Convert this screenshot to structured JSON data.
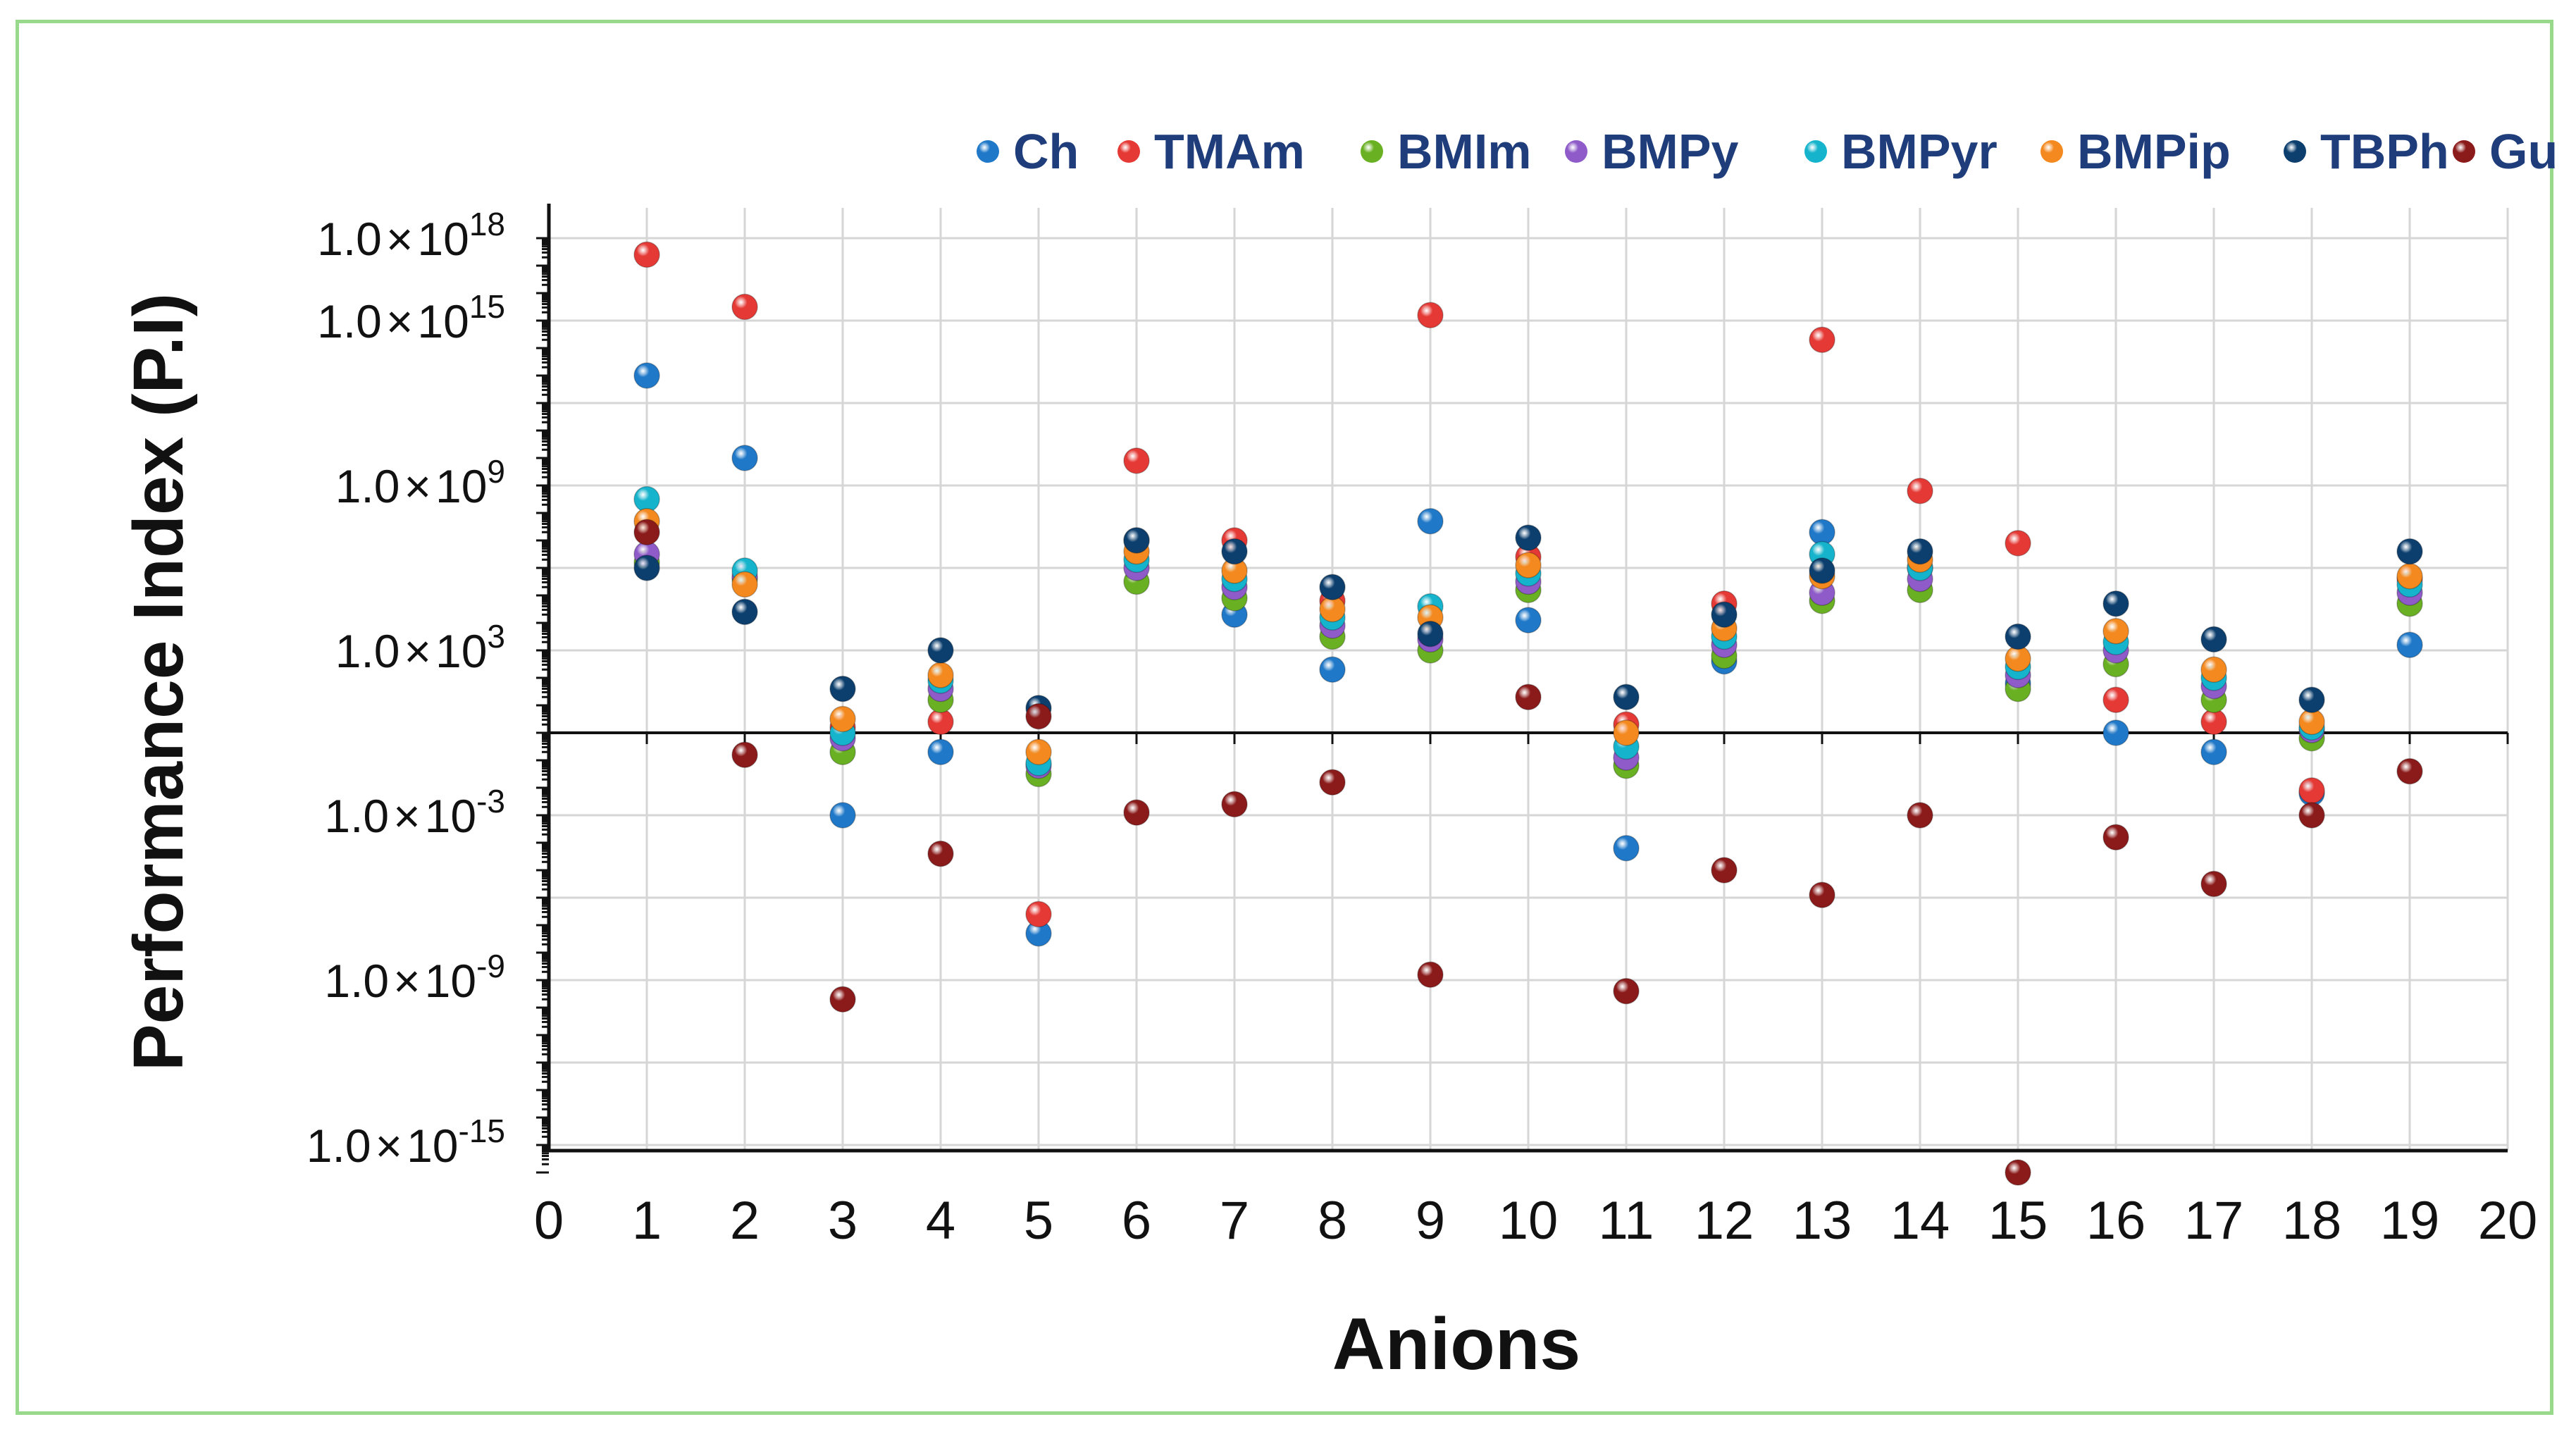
{
  "chart_data": {
    "type": "scatter",
    "title": "",
    "xlabel": "Anions",
    "ylabel": "Performance Index (P.I)",
    "y_scale": "log10",
    "xlim": [
      0,
      20
    ],
    "ylim_exponent": [
      -16,
      18.5
    ],
    "x_ticks": [
      "0",
      "1",
      "2",
      "3",
      "4",
      "5",
      "6",
      "7",
      "8",
      "9",
      "10",
      "11",
      "12",
      "13",
      "14",
      "15",
      "16",
      "17",
      "18",
      "19",
      "20"
    ],
    "y_ticks": [
      {
        "mantissa": "1.0",
        "times": "×",
        "base": "10",
        "exponent": "18"
      },
      {
        "mantissa": "1.0",
        "times": "×",
        "base": "10",
        "exponent": "15"
      },
      {
        "mantissa": "1.0",
        "times": "×",
        "base": "10",
        "exponent": "9"
      },
      {
        "mantissa": "1.0",
        "times": "×",
        "base": "10",
        "exponent": "3"
      },
      {
        "mantissa": "1.0",
        "times": "×",
        "base": "10",
        "exponent": "-3"
      },
      {
        "mantissa": "1.0",
        "times": "×",
        "base": "10",
        "exponent": "-9"
      },
      {
        "mantissa": "1.0",
        "times": "×",
        "base": "10",
        "exponent": "-15"
      }
    ],
    "grid": true,
    "legend_position": "top",
    "series": [
      {
        "name": "Ch",
        "color": "#1f78c8",
        "x": [
          1,
          2,
          3,
          4,
          5,
          6,
          7,
          8,
          9,
          10,
          11,
          12,
          13,
          14,
          15,
          16,
          17,
          18,
          19
        ],
        "log10_y": [
          13,
          10,
          -3,
          -0.7,
          -7.3,
          7,
          4.3,
          2.3,
          7.7,
          4.1,
          -4.2,
          2.6,
          7.3,
          6,
          1.8,
          0,
          -0.7,
          -2.2,
          3.2
        ]
      },
      {
        "name": "TMAm",
        "color": "#e53935",
        "x": [
          1,
          2,
          3,
          4,
          5,
          6,
          7,
          8,
          9,
          10,
          11,
          12,
          13,
          14,
          15,
          16,
          17,
          18,
          19
        ],
        "log10_y": [
          17.4,
          15.5,
          0.2,
          0.4,
          -6.6,
          9.9,
          7,
          4.8,
          15.2,
          6.4,
          0.3,
          4.7,
          14.3,
          8.8,
          6.9,
          1.2,
          0.4,
          -2.1,
          5.6
        ]
      },
      {
        "name": "BMIm",
        "color": "#6ab023",
        "x": [
          1,
          2,
          3,
          4,
          5,
          6,
          7,
          8,
          9,
          10,
          11,
          12,
          13,
          14,
          15,
          16,
          17,
          18,
          19
        ],
        "log10_y": [
          6.2,
          5.6,
          -0.7,
          1.2,
          -1.5,
          5.5,
          4.9,
          3.5,
          3,
          5.2,
          -1.2,
          2.8,
          4.8,
          5.2,
          1.6,
          2.5,
          1.2,
          -0.2,
          4.7
        ]
      },
      {
        "name": "BMPy",
        "color": "#8e5bc8",
        "x": [
          1,
          2,
          3,
          4,
          5,
          6,
          7,
          8,
          9,
          10,
          11,
          12,
          13,
          14,
          15,
          16,
          17,
          18,
          19
        ],
        "log10_y": [
          6.5,
          5.7,
          -0.2,
          1.6,
          -1.2,
          6,
          5.3,
          3.9,
          3.4,
          5.5,
          -0.9,
          3.2,
          5.1,
          5.6,
          2.1,
          3,
          1.7,
          0.1,
          5.1
        ]
      },
      {
        "name": "BMPyr",
        "color": "#16b4cc",
        "x": [
          1,
          2,
          3,
          4,
          5,
          6,
          7,
          8,
          9,
          10,
          11,
          12,
          13,
          14,
          15,
          16,
          17,
          18,
          19
        ],
        "log10_y": [
          8.5,
          5.9,
          0,
          1.9,
          -1.1,
          6.3,
          5.6,
          4.2,
          4.6,
          5.8,
          -0.5,
          3.5,
          6.5,
          6,
          2.4,
          3.3,
          2,
          0.2,
          5.4
        ]
      },
      {
        "name": "BMPip",
        "color": "#f4891f",
        "x": [
          1,
          2,
          3,
          4,
          5,
          6,
          7,
          8,
          9,
          10,
          11,
          12,
          13,
          14,
          15,
          16,
          17,
          18,
          19
        ],
        "log10_y": [
          7.7,
          5.4,
          0.5,
          2.1,
          -0.7,
          6.6,
          5.9,
          4.5,
          4.2,
          6.1,
          0,
          3.8,
          5.7,
          6.3,
          2.7,
          3.7,
          2.3,
          0.4,
          5.7
        ]
      },
      {
        "name": "TBPh",
        "color": "#0d3f6e",
        "x": [
          1,
          2,
          3,
          4,
          5,
          6,
          7,
          8,
          9,
          10,
          11,
          12,
          13,
          14,
          15,
          16,
          17,
          18,
          19
        ],
        "log10_y": [
          6,
          4.4,
          1.6,
          3,
          0.9,
          7,
          6.6,
          5.3,
          3.6,
          7.1,
          1.3,
          4.3,
          5.9,
          6.6,
          3.5,
          4.7,
          3.4,
          1.2,
          6.6
        ]
      },
      {
        "name": "Gu",
        "color": "#8b1a1a",
        "x": [
          1,
          2,
          3,
          4,
          5,
          6,
          7,
          8,
          9,
          10,
          11,
          12,
          13,
          14,
          15,
          16,
          17,
          18,
          19
        ],
        "log10_y": [
          7.3,
          -0.8,
          -9.7,
          -4.4,
          0.6,
          -2.9,
          -2.6,
          -1.8,
          -8.8,
          1.3,
          -9.4,
          -5,
          -5.9,
          -3,
          -16,
          -3.8,
          -5.5,
          -3,
          -1.4
        ]
      }
    ]
  }
}
